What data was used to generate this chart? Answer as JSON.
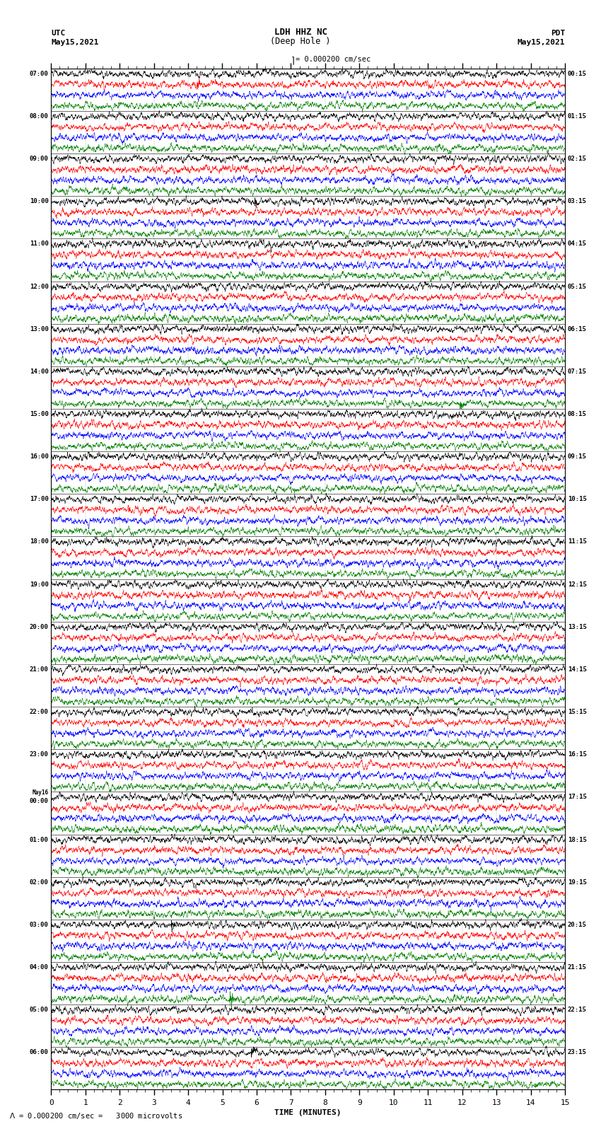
{
  "title_line1": "LDH HHZ NC",
  "title_line2": "(Deep Hole )",
  "scale_text": "= 0.000200 cm/sec",
  "scale_label": "= 0.000200 cm/sec =   3000 microvolts",
  "left_label_line1": "UTC",
  "left_label_line2": "May15,2021",
  "right_label_line1": "PDT",
  "right_label_line2": "May15,2021",
  "xlabel": "TIME (MINUTES)",
  "utc_times": [
    "07:00",
    "08:00",
    "09:00",
    "10:00",
    "11:00",
    "12:00",
    "13:00",
    "14:00",
    "15:00",
    "16:00",
    "17:00",
    "18:00",
    "19:00",
    "20:00",
    "21:00",
    "22:00",
    "23:00",
    "May16\n00:00",
    "01:00",
    "02:00",
    "03:00",
    "04:00",
    "05:00",
    "06:00"
  ],
  "pdt_times": [
    "00:15",
    "01:15",
    "02:15",
    "03:15",
    "04:15",
    "05:15",
    "06:15",
    "07:15",
    "08:15",
    "09:15",
    "10:15",
    "11:15",
    "12:15",
    "13:15",
    "14:15",
    "15:15",
    "16:15",
    "17:15",
    "18:15",
    "19:15",
    "20:15",
    "21:15",
    "22:15",
    "23:15"
  ],
  "colors": [
    "black",
    "red",
    "blue",
    "green"
  ],
  "n_hours": 24,
  "traces_per_hour": 4,
  "time_minutes": 15,
  "background_color": "white",
  "figsize": [
    8.5,
    16.13
  ],
  "dpi": 100
}
